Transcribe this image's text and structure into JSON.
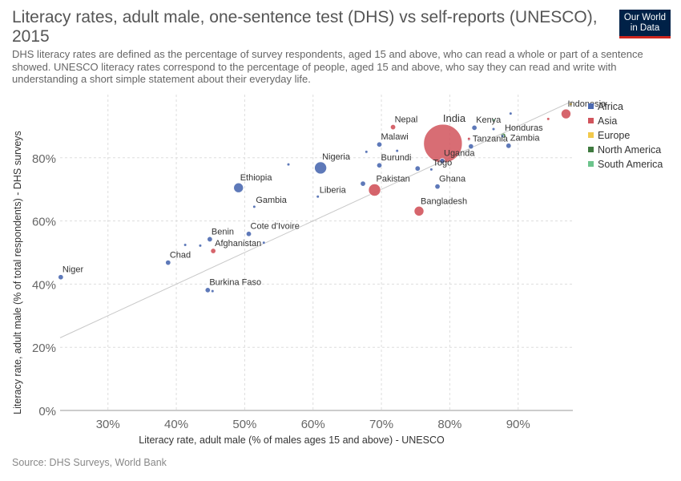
{
  "header": {
    "title": "Literacy rates, adult male, one-sentence test (DHS) vs self-reports (UNESCO), 2015",
    "subtitle": "DHS literacy rates are defined as the percentage of survey respondents, aged 15 and above, who can read a whole or part of a sentence showed. UNESCO literacy rates correspond to the percentage of people, aged 15 and above, who say they can read and write with understanding a short simple statement about their everyday life.",
    "logo": "Our World in Data"
  },
  "source": "Source: DHS Surveys, World Bank",
  "colors": {
    "Africa": "#4c6ab1",
    "Asia": "#d1545c",
    "Europe": "#f2c94c",
    "North America": "#3f7a3f",
    "South America": "#6cc48c",
    "grid": "#dddddd",
    "diagonal": "#c8c8c8"
  },
  "chart_data": {
    "type": "scatter",
    "title": "Literacy rates, adult male, one-sentence test (DHS) vs self-reports (UNESCO), 2015",
    "xlabel": "Literacy rate, adult male (% of males ages 15 and above) - UNESCO",
    "ylabel": "Literacy rate, adult male (% of total respondents) - DHS surveys",
    "xlim": [
      23,
      98
    ],
    "ylim": [
      0,
      100
    ],
    "x_ticks": [
      "30%",
      "40%",
      "50%",
      "60%",
      "70%",
      "80%",
      "90%"
    ],
    "y_ticks": [
      "0%",
      "20%",
      "40%",
      "60%",
      "80%"
    ],
    "x_tick_values": [
      30,
      40,
      50,
      60,
      70,
      80,
      90
    ],
    "y_tick_values": [
      0,
      20,
      40,
      60,
      80
    ],
    "grid": true,
    "diagonal_reference_line": true,
    "legend_position": "right",
    "legend": [
      "Africa",
      "Asia",
      "Europe",
      "North America",
      "South America"
    ],
    "points": [
      {
        "label": "Niger",
        "region": "Africa",
        "x": 23.1,
        "y": 42.2,
        "size": "small"
      },
      {
        "label": "Chad",
        "region": "Africa",
        "x": 38.8,
        "y": 46.8,
        "size": "small"
      },
      {
        "label": "Benin",
        "region": "Africa",
        "x": 44.9,
        "y": 54.2,
        "size": "small"
      },
      {
        "label": "Afghanistan",
        "region": "Asia",
        "x": 45.4,
        "y": 50.5,
        "size": "small"
      },
      {
        "label": "Burkina Faso",
        "region": "Africa",
        "x": 44.6,
        "y": 38.1,
        "size": "small"
      },
      {
        "label": "Cote d'Ivoire",
        "region": "Africa",
        "x": 50.6,
        "y": 55.9,
        "size": "small"
      },
      {
        "label": "Gambia",
        "region": "Africa",
        "x": 51.4,
        "y": 64.5,
        "size": "tiny"
      },
      {
        "label": "Ethiopia",
        "region": "Africa",
        "x": 49.1,
        "y": 70.5,
        "size": "medium"
      },
      {
        "label": "Nigeria",
        "region": "Africa",
        "x": 61.1,
        "y": 76.8,
        "size": "large"
      },
      {
        "label": "Liberia",
        "region": "Africa",
        "x": 60.7,
        "y": 67.7,
        "size": "tiny"
      },
      {
        "label": "Pakistan",
        "region": "Asia",
        "x": 69.0,
        "y": 69.8,
        "size": "large"
      },
      {
        "label": "Malawi",
        "region": "Africa",
        "x": 69.7,
        "y": 84.2,
        "size": "small"
      },
      {
        "label": "Burundi",
        "region": "Africa",
        "x": 69.7,
        "y": 77.6,
        "size": "small"
      },
      {
        "label": "Nepal",
        "region": "Asia",
        "x": 71.7,
        "y": 89.7,
        "size": "small"
      },
      {
        "label": "Bangladesh",
        "region": "Asia",
        "x": 75.5,
        "y": 63.1,
        "size": "medium"
      },
      {
        "label": "Togo",
        "region": "Africa",
        "x": 77.3,
        "y": 76.3,
        "size": "tiny"
      },
      {
        "label": "Ghana",
        "region": "Africa",
        "x": 78.2,
        "y": 70.9,
        "size": "small"
      },
      {
        "label": "Uganda",
        "region": "Africa",
        "x": 78.9,
        "y": 79.0,
        "size": "small"
      },
      {
        "label": "India",
        "region": "Asia",
        "x": 79.0,
        "y": 84.5,
        "size": "huge"
      },
      {
        "label": "Tanzania",
        "region": "Africa",
        "x": 83.1,
        "y": 83.6,
        "size": "small"
      },
      {
        "label": "Kenya",
        "region": "Africa",
        "x": 83.6,
        "y": 89.5,
        "size": "small"
      },
      {
        "label": "Honduras",
        "region": "North America",
        "x": 87.8,
        "y": 87.0,
        "size": "small"
      },
      {
        "label": "Zambia",
        "region": "Africa",
        "x": 88.6,
        "y": 83.8,
        "size": "small"
      },
      {
        "label": "Indonesia",
        "region": "Asia",
        "x": 97.0,
        "y": 93.9,
        "size": "medium"
      },
      {
        "label": "",
        "region": "Africa",
        "x": 41.3,
        "y": 52.4,
        "size": "tiny"
      },
      {
        "label": "",
        "region": "Africa",
        "x": 43.5,
        "y": 52.2,
        "size": "tiny"
      },
      {
        "label": "",
        "region": "Africa",
        "x": 45.3,
        "y": 37.8,
        "size": "tiny"
      },
      {
        "label": "",
        "region": "Africa",
        "x": 52.8,
        "y": 53.1,
        "size": "tiny"
      },
      {
        "label": "",
        "region": "Africa",
        "x": 56.4,
        "y": 77.9,
        "size": "tiny"
      },
      {
        "label": "",
        "region": "Africa",
        "x": 67.3,
        "y": 71.8,
        "size": "small"
      },
      {
        "label": "",
        "region": "Africa",
        "x": 67.8,
        "y": 81.9,
        "size": "tiny"
      },
      {
        "label": "",
        "region": "Africa",
        "x": 72.3,
        "y": 82.2,
        "size": "tiny"
      },
      {
        "label": "",
        "region": "Africa",
        "x": 75.3,
        "y": 76.6,
        "size": "small"
      },
      {
        "label": "",
        "region": "Africa",
        "x": 82.8,
        "y": 85.8,
        "size": "tiny"
      },
      {
        "label": "",
        "region": "Asia",
        "x": 82.8,
        "y": 86.0,
        "size": "tiny"
      },
      {
        "label": "",
        "region": "Africa",
        "x": 86.4,
        "y": 89.1,
        "size": "tiny"
      },
      {
        "label": "",
        "region": "Africa",
        "x": 87.7,
        "y": 86.9,
        "size": "tiny"
      },
      {
        "label": "",
        "region": "Africa",
        "x": 88.9,
        "y": 94.0,
        "size": "tiny"
      },
      {
        "label": "",
        "region": "South America",
        "x": 86.4,
        "y": 91.9,
        "size": "tiny"
      },
      {
        "label": "",
        "region": "Asia",
        "x": 94.4,
        "y": 92.3,
        "size": "tiny"
      },
      {
        "label": "",
        "region": "Europe",
        "x": 97.7,
        "y": 97.0,
        "size": "tiny"
      }
    ]
  }
}
